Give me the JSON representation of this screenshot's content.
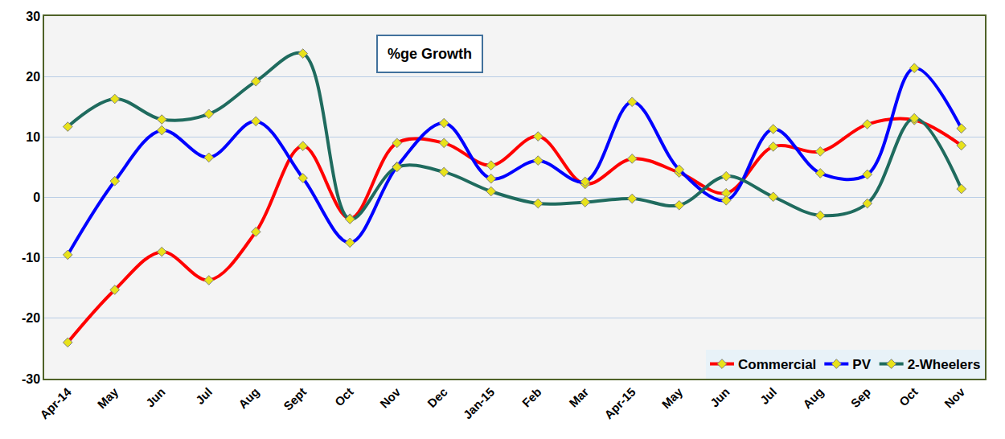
{
  "chart_data": {
    "type": "line",
    "title": "%ge Growth",
    "categories": [
      "Apr-14",
      "May",
      "Jun",
      "Jul",
      "Aug",
      "Sept",
      "Oct",
      "Nov",
      "Dec",
      "Jan-15",
      "Feb",
      "Mar",
      "Apr-15",
      "May",
      "Jun",
      "Jul",
      "Aug",
      "Sep",
      "Oct",
      "Nov"
    ],
    "series": [
      {
        "name": "Commercial",
        "color": "#ff0000",
        "values": [
          -24,
          -15.3,
          -9,
          -13.7,
          -5.7,
          8.5,
          -3.5,
          9,
          9,
          5.3,
          10.1,
          2.2,
          6.4,
          4.1,
          0.7,
          8.4,
          7.6,
          12.1,
          12.8,
          8.6
        ]
      },
      {
        "name": "PV",
        "color": "#0000ff",
        "values": [
          -9.5,
          2.7,
          11.1,
          6.6,
          12.6,
          3.2,
          -7.5,
          5.1,
          12.3,
          3.1,
          6.1,
          2.6,
          15.8,
          4.6,
          -0.5,
          11.3,
          4,
          3.8,
          21.4,
          11.4
        ]
      },
      {
        "name": "2-Wheelers",
        "color": "#1f6b5e",
        "values": [
          11.7,
          16.3,
          12.9,
          13.8,
          19.2,
          23.8,
          -3.6,
          5,
          4.2,
          1,
          -1,
          -0.8,
          -0.2,
          -1.3,
          3.5,
          0.1,
          -3,
          -1,
          13.1,
          1.4
        ]
      }
    ],
    "ylim": [
      -30,
      30
    ],
    "yticks": [
      -30,
      -20,
      -10,
      0,
      10,
      20,
      30
    ],
    "grid": true,
    "legend": "lower right",
    "marker": "diamond"
  }
}
